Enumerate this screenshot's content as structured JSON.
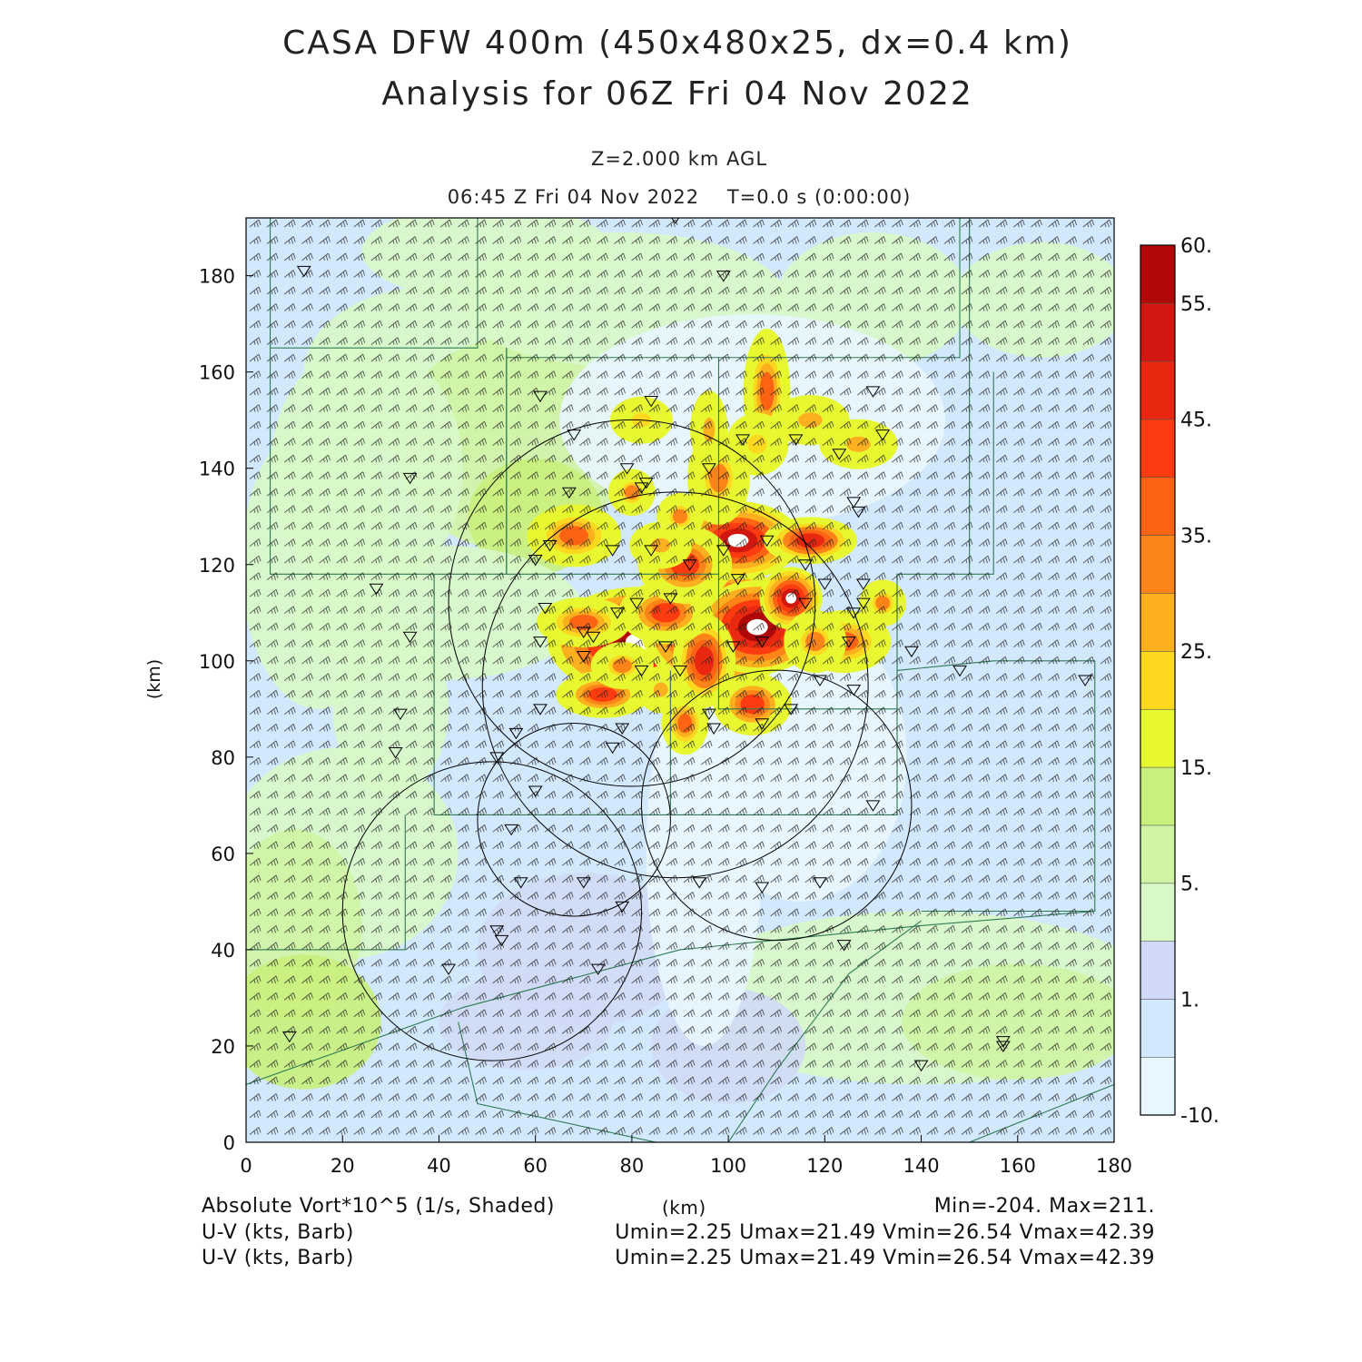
{
  "header": {
    "title_line1": "CASA DFW 400m (450x480x25, dx=0.4 km)",
    "title_line2": "Analysis for 06Z Fri 04 Nov 2022",
    "level": "Z=2.000 km AGL",
    "time": "06:45 Z Fri 04 Nov 2022    T=0.0 s (0:00:00)"
  },
  "axes": {
    "xlabel": "(km)",
    "ylabel": "(km)",
    "xlim": [
      0,
      180
    ],
    "ylim": [
      0,
      192
    ],
    "x_ticks": [
      "0",
      "20",
      "40",
      "60",
      "80",
      "100",
      "120",
      "140",
      "160",
      "180"
    ],
    "y_ticks": [
      "0",
      "20",
      "40",
      "60",
      "80",
      "100",
      "120",
      "140",
      "160",
      "180"
    ]
  },
  "colorbar": {
    "labels": [
      "60.",
      "55.",
      "45.",
      "35.",
      "25.",
      "15.",
      "5.",
      "1.",
      "-10."
    ],
    "colors": [
      "#e8f6fe",
      "#d2e8fc",
      "#d0daf6",
      "#d8f8c8",
      "#d0f4a4",
      "#c8f07c",
      "#e8f830",
      "#fcd820",
      "#fcb020",
      "#fc8418",
      "#fc6414",
      "#fc3c10",
      "#e82810",
      "#d01810",
      "#b00808"
    ]
  },
  "footer": {
    "field": "Absolute Vort*10^5 (1/s, Shaded)",
    "xunit": "(km)",
    "minmax": "Min=-204. Max=211.",
    "barb1": "U-V (kts, Barb)",
    "barb2": "U-V (kts, Barb)",
    "uv1": "Umin=2.25 Umax=21.49 Vmin=26.54 Vmax=42.39",
    "uv2": "Umin=2.25 Umax=21.49 Vmin=26.54 Vmax=42.39"
  },
  "radar_rings_center_km": [
    [
      51,
      48
    ],
    [
      80,
      112
    ],
    [
      89,
      95
    ],
    [
      68,
      67
    ],
    [
      110,
      70
    ],
    [
      40,
      30
    ]
  ]
}
